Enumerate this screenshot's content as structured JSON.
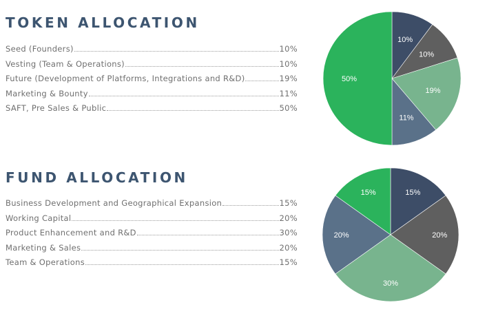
{
  "chart_data": [
    {
      "type": "pie",
      "title": "TOKEN ALLOCATION",
      "categories": [
        "Seed (Founders)",
        "Vesting (Team & Operations)",
        "Future (Development of Platforms, Integrations and R&D)",
        "Marketing & Bounty",
        "SAFT, Pre Sales & Public"
      ],
      "values": [
        10,
        10,
        19,
        11,
        50
      ],
      "value_labels": [
        "10%",
        "10%",
        "19%",
        "11%",
        "50%"
      ],
      "slice_labels": [
        "10%",
        "10%",
        "19%",
        "11%",
        "50%"
      ],
      "colors": [
        "#3d4d67",
        "#5f5f5f",
        "#78b48e",
        "#5a7189",
        "#2bb35c"
      ]
    },
    {
      "type": "pie",
      "title": "FUND ALLOCATION",
      "categories": [
        "Business Development and Geographical Expansion",
        "Working Capital",
        "Product Enhancement and R&D",
        "Marketing & Sales",
        "Team & Operations"
      ],
      "values": [
        15,
        20,
        30,
        20,
        15
      ],
      "value_labels": [
        "15%",
        "20%",
        "30%",
        "20%",
        "15%"
      ],
      "slice_labels": [
        "15%",
        "20%",
        "30%",
        "20%",
        "15%"
      ],
      "colors": [
        "#3d4d67",
        "#5f5f5f",
        "#78b48e",
        "#5a7189",
        "#2bb35c"
      ]
    }
  ]
}
